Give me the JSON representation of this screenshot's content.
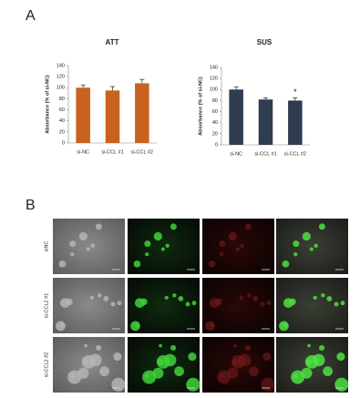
{
  "panels": [
    "A",
    "B"
  ],
  "image_rows": [
    "siNC",
    "si-CCL2 #1",
    "si-CCL2 #2"
  ],
  "chart_data": [
    {
      "type": "bar",
      "title": "ATT",
      "y_label": "Absorbance (% of si-NC)",
      "categories": [
        "si-NC",
        "si-CCL #1",
        "si-CCL #2"
      ],
      "values": [
        100,
        95,
        108
      ],
      "errors": [
        5,
        7,
        7
      ],
      "color": "#c8621e",
      "ylim": [
        0,
        140
      ],
      "yticks": [
        0,
        20,
        40,
        60,
        80,
        100,
        120,
        140
      ]
    },
    {
      "type": "bar",
      "title": "SUS",
      "y_label": "Absorbance (% of si-NC)",
      "categories": [
        "si-NC",
        "si-CCL #1",
        "si-CCL #2"
      ],
      "values": [
        100,
        82,
        80
      ],
      "errors": [
        5,
        3,
        5
      ],
      "color": "#2e3d50",
      "ylim": [
        0,
        140
      ],
      "yticks": [
        0,
        20,
        40,
        60,
        80,
        100,
        120,
        140
      ],
      "annotations": [
        {
          "text": "*",
          "category": "si-CCL #2"
        }
      ]
    }
  ]
}
